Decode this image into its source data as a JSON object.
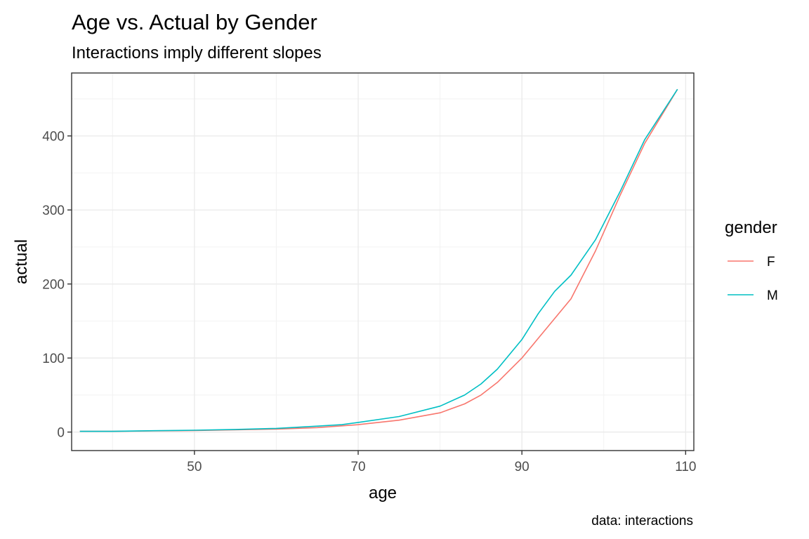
{
  "chart_data": {
    "type": "line",
    "title": "Age vs. Actual by Gender",
    "subtitle": "Interactions imply different slopes",
    "xlabel": "age",
    "ylabel": "actual",
    "caption": "data: interactions",
    "xlim": [
      35,
      111
    ],
    "ylim": [
      -25,
      485
    ],
    "x_ticks": [
      50,
      70,
      90,
      110
    ],
    "y_ticks": [
      0,
      100,
      200,
      300,
      400
    ],
    "grid": true,
    "legend": {
      "title": "gender",
      "position": "right"
    },
    "series": [
      {
        "name": "F",
        "color": "#F8766D",
        "points": [
          [
            36,
            1
          ],
          [
            40,
            1
          ],
          [
            45,
            1.5
          ],
          [
            50,
            2
          ],
          [
            55,
            3
          ],
          [
            60,
            4
          ],
          [
            65,
            6
          ],
          [
            70,
            10
          ],
          [
            75,
            16
          ],
          [
            80,
            26
          ],
          [
            83,
            38
          ],
          [
            85,
            50
          ],
          [
            87,
            67
          ],
          [
            90,
            100
          ],
          [
            93,
            140
          ],
          [
            96,
            180
          ],
          [
            99,
            245
          ],
          [
            102,
            320
          ],
          [
            105,
            390
          ],
          [
            109,
            463
          ]
        ]
      },
      {
        "name": "M",
        "color": "#00BFC4",
        "points": [
          [
            36,
            1
          ],
          [
            40,
            1
          ],
          [
            45,
            1.8
          ],
          [
            50,
            2.5
          ],
          [
            55,
            3.5
          ],
          [
            60,
            5
          ],
          [
            65,
            8
          ],
          [
            68,
            10
          ],
          [
            70,
            13
          ],
          [
            75,
            21
          ],
          [
            80,
            35
          ],
          [
            83,
            50
          ],
          [
            85,
            65
          ],
          [
            87,
            85
          ],
          [
            90,
            125
          ],
          [
            92,
            160
          ],
          [
            94,
            190
          ],
          [
            96,
            212
          ],
          [
            99,
            260
          ],
          [
            102,
            325
          ],
          [
            105,
            395
          ],
          [
            109,
            463
          ]
        ]
      }
    ]
  }
}
